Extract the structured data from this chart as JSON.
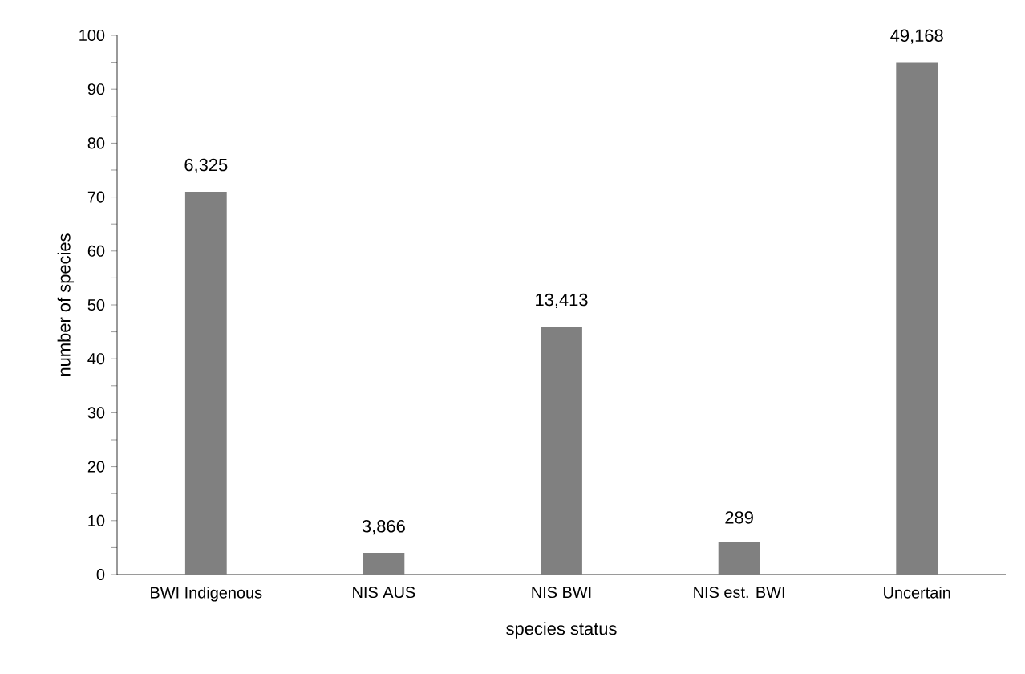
{
  "chart_data": {
    "type": "bar",
    "xlabel": "species status",
    "ylabel": "number of species",
    "categories": [
      "BWI Indigenous",
      "NIS AUS",
      "NIS BWI",
      "NIS est. BWI",
      "Uncertain"
    ],
    "values": [
      71,
      4,
      46,
      6,
      95
    ],
    "annotations": [
      {
        "text": "6,325",
        "x": "BWI Indigenous",
        "y": 71
      },
      {
        "text": "3,866",
        "x": "NIS AUS",
        "y": 4
      },
      {
        "text": "13,413",
        "x": "NIS BWI",
        "y": 46
      },
      {
        "text": "289",
        "x": "NIS est. BWI",
        "y": 6
      },
      {
        "text": "49,168",
        "x": "Uncertain",
        "y": 95
      }
    ],
    "color": "#808080",
    "ylim": [
      0,
      100
    ],
    "yticks": [
      0,
      {
        "value": 5,
        "label": null
      },
      10,
      {
        "value": 15,
        "label": null
      },
      20,
      {
        "value": 25,
        "label": null
      },
      30,
      {
        "value": 35,
        "label": null
      },
      40,
      {
        "value": 45,
        "label": null
      },
      50,
      {
        "value": 55,
        "label": null
      },
      60,
      {
        "value": 65,
        "label": null
      },
      70,
      {
        "value": 75,
        "label": null
      },
      80,
      {
        "value": 85,
        "label": null
      },
      90,
      {
        "value": 95,
        "label": null
      },
      100
    ],
    "grid": false
  }
}
